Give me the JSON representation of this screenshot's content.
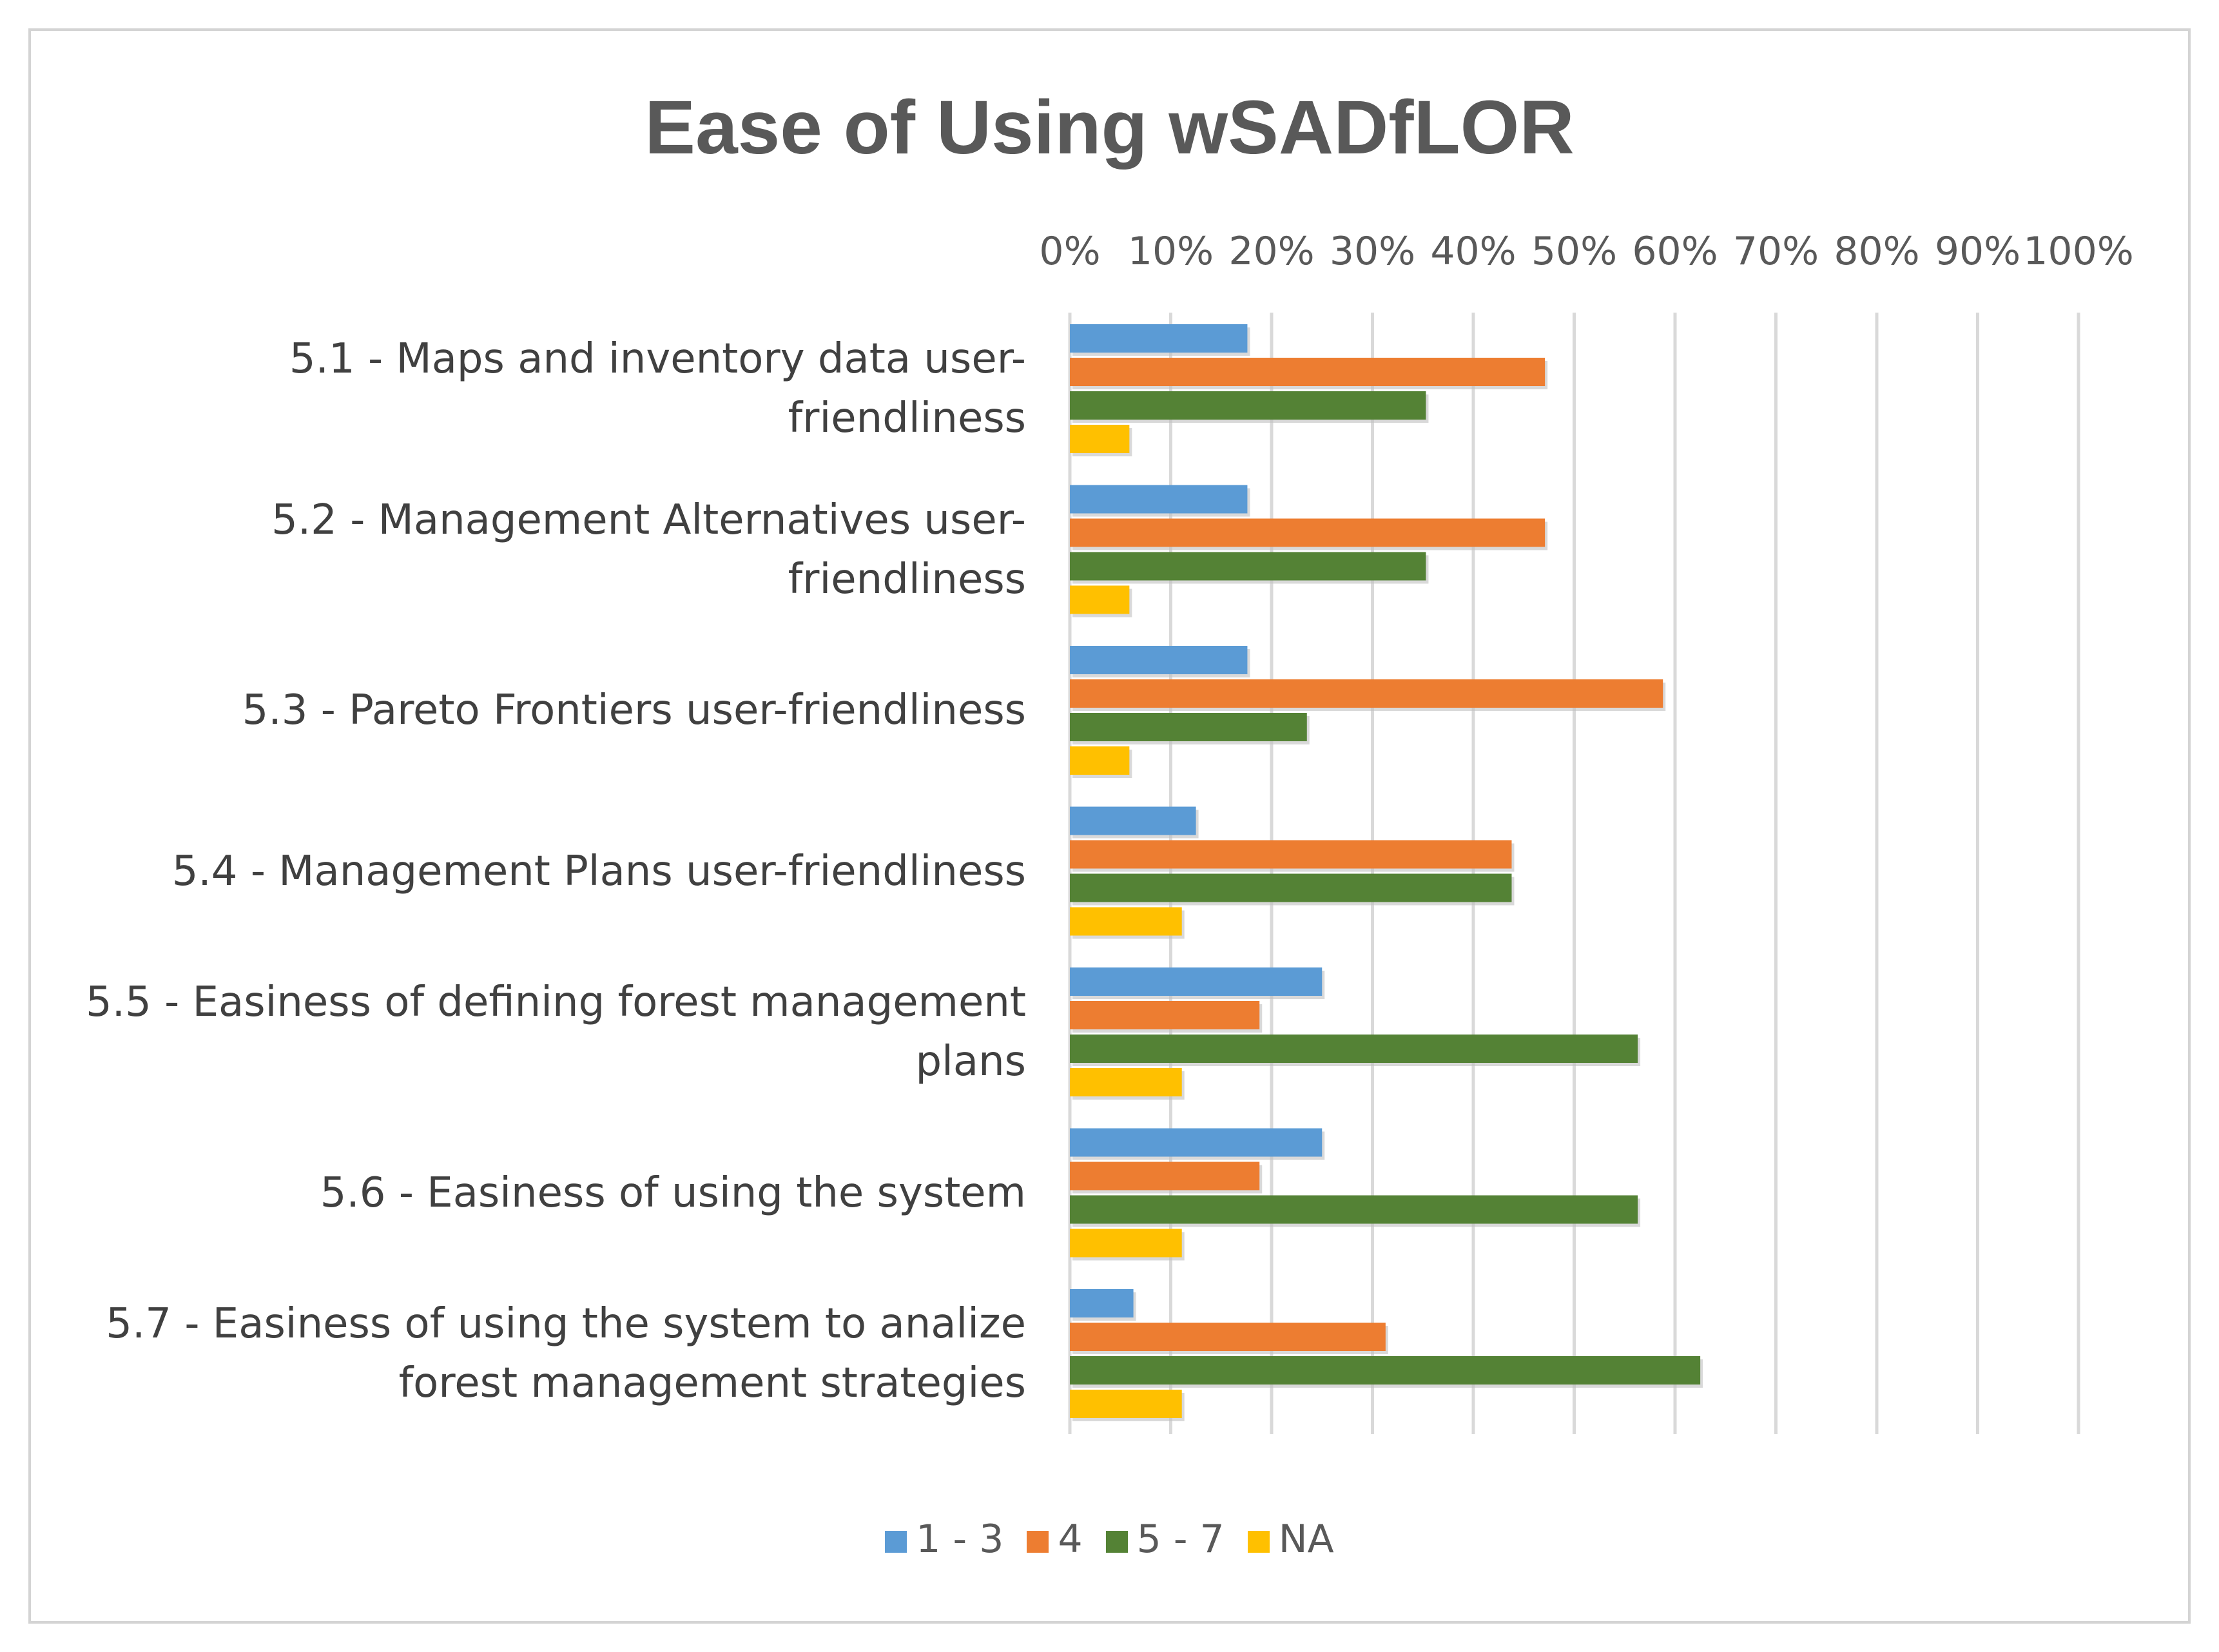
{
  "chart_data": {
    "type": "bar",
    "orientation": "horizontal",
    "title": "Ease of Using wSADfLOR",
    "xlabel": "",
    "ylabel": "",
    "xlim": [
      0,
      100
    ],
    "x_ticks": [
      "0%",
      "10%",
      "20%",
      "30%",
      "40%",
      "50%",
      "60%",
      "70%",
      "80%",
      "90%",
      "100%"
    ],
    "x_axis_position": "top",
    "grid": true,
    "legend_position": "bottom",
    "categories": [
      "5.1 - Maps and inventory data user-friendliness",
      "5.2  - Management Alternatives user-friendliness",
      "5.3 - Pareto Frontiers user-friendliness",
      "5.4 - Management Plans user-friendliness",
      "5.5 - Easiness of defining forest management plans",
      "5.6 - Easiness of using the system",
      "5.7 - Easiness of using the system to analize forest management strategies"
    ],
    "series": [
      {
        "name": "1 - 3",
        "color": "#5b9bd5",
        "values": [
          17.6,
          17.6,
          17.6,
          12.5,
          25,
          25,
          6.3
        ]
      },
      {
        "name": "4",
        "color": "#ed7d31",
        "values": [
          47.1,
          47.1,
          58.8,
          43.8,
          18.8,
          18.8,
          31.3
        ]
      },
      {
        "name": "5 - 7",
        "color": "#548235",
        "values": [
          35.3,
          35.3,
          23.5,
          43.8,
          56.3,
          56.3,
          62.5
        ]
      },
      {
        "name": "NA",
        "color": "#ffc000",
        "values": [
          5.9,
          5.9,
          5.9,
          11.1,
          11.1,
          11.1,
          11.1
        ]
      }
    ]
  }
}
